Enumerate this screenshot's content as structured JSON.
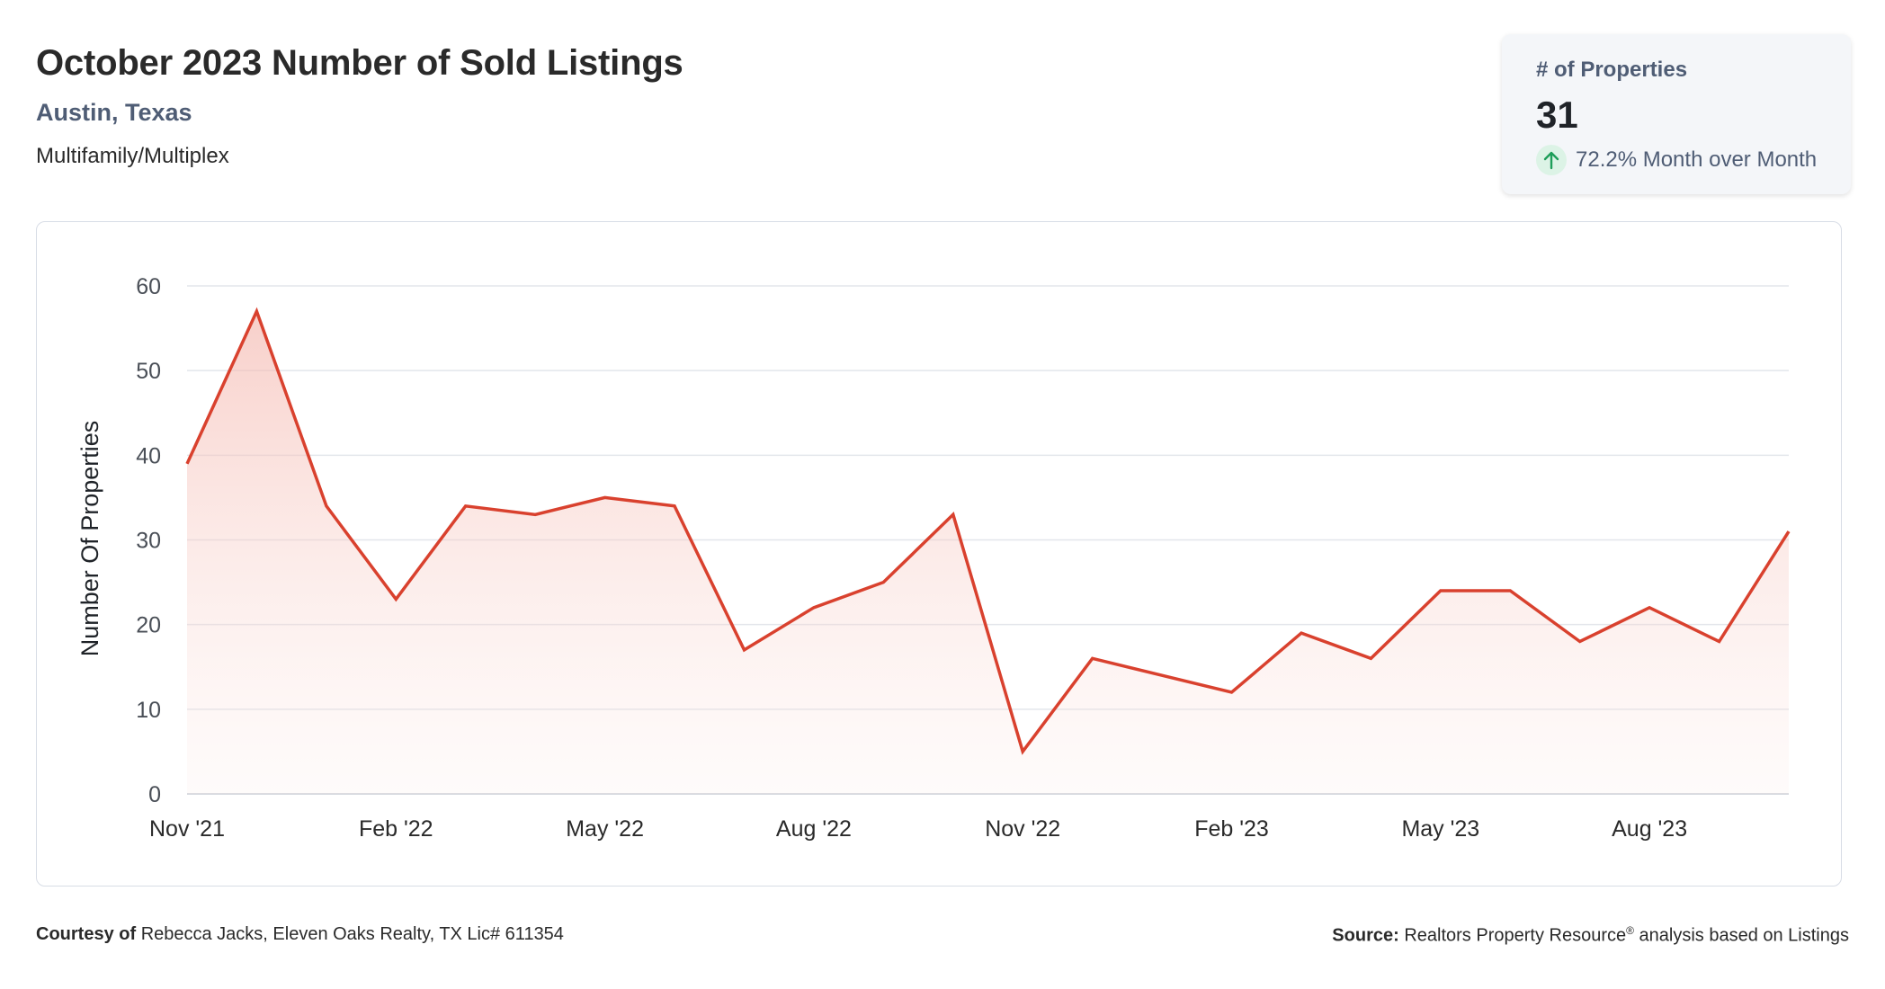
{
  "header": {
    "title": "October 2023 Number of Sold Listings",
    "location": "Austin, Texas",
    "property_type": "Multifamily/Multiplex"
  },
  "stat_card": {
    "label": "# of Properties",
    "value": "31",
    "change_text": "72.2% Month over Month",
    "direction_icon": "arrow-up-icon",
    "positive_color": "#1e9e5a"
  },
  "footer": {
    "courtesy_label": "Courtesy of",
    "courtesy_text": "Rebecca Jacks, Eleven Oaks Realty, TX Lic# 611354",
    "source_label": "Source:",
    "source_text_pre": "Realtors Property Resource",
    "source_sup": "®",
    "source_text_post": "analysis based on Listings"
  },
  "chart_data": {
    "type": "area",
    "ylabel": "Number Of Properties",
    "xlabel": "",
    "ylim": [
      0,
      60
    ],
    "yticks": [
      0,
      10,
      20,
      30,
      40,
      50,
      60
    ],
    "x": [
      "Nov '21",
      "Dec '21",
      "Jan '22",
      "Feb '22",
      "Mar '22",
      "Apr '22",
      "May '22",
      "Jun '22",
      "Jul '22",
      "Aug '22",
      "Sep '22",
      "Oct '22",
      "Nov '22",
      "Dec '22",
      "Jan '23",
      "Feb '23",
      "Mar '23",
      "Apr '23",
      "May '23",
      "Jun '23",
      "Jul '23",
      "Aug '23",
      "Sep '23",
      "Oct '23"
    ],
    "xtick_labels": [
      "Nov '21",
      "Feb '22",
      "May '22",
      "Aug '22",
      "Nov '22",
      "Feb '23",
      "May '23",
      "Aug '23"
    ],
    "series": [
      {
        "values": [
          39,
          57,
          34,
          23,
          34,
          33,
          35,
          34,
          17,
          22,
          25,
          33,
          5,
          16,
          14,
          12,
          19,
          16,
          24,
          24,
          18,
          22,
          18,
          31
        ]
      }
    ],
    "line_color": "#d9412e",
    "grid": true,
    "legend": "none"
  }
}
